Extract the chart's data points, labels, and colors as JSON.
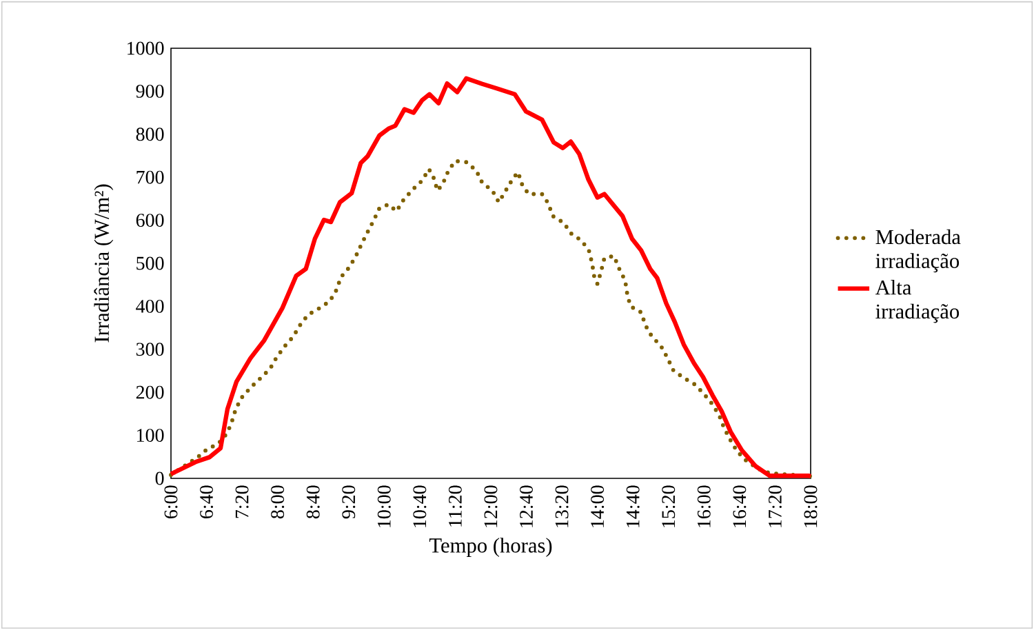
{
  "chart_data": {
    "type": "line",
    "xlabel": "Tempo (horas)",
    "ylabel": "Irradiância (W/m²)",
    "xlim": [
      6,
      18
    ],
    "ylim": [
      0,
      1000
    ],
    "xticks": [
      {
        "value": 6,
        "label": "6:00"
      },
      {
        "value": 6.6667,
        "label": "6:40"
      },
      {
        "value": 7.3333,
        "label": "7:20"
      },
      {
        "value": 8,
        "label": "8:00"
      },
      {
        "value": 8.6667,
        "label": "8:40"
      },
      {
        "value": 9.3333,
        "label": "9:20"
      },
      {
        "value": 10,
        "label": "10:00"
      },
      {
        "value": 10.6667,
        "label": "10:40"
      },
      {
        "value": 11.3333,
        "label": "11:20"
      },
      {
        "value": 12,
        "label": "12:00"
      },
      {
        "value": 12.6667,
        "label": "12:40"
      },
      {
        "value": 13.3333,
        "label": "13:20"
      },
      {
        "value": 14,
        "label": "14:00"
      },
      {
        "value": 14.6667,
        "label": "14:40"
      },
      {
        "value": 15.3333,
        "label": "15:20"
      },
      {
        "value": 16,
        "label": "16:00"
      },
      {
        "value": 16.6667,
        "label": "16:40"
      },
      {
        "value": 17.3333,
        "label": "17:20"
      },
      {
        "value": 18,
        "label": "18:00"
      }
    ],
    "yticks": [
      0,
      100,
      200,
      300,
      400,
      500,
      600,
      700,
      800,
      900,
      1000
    ],
    "legend": "right",
    "marker": "none",
    "series": [
      {
        "name": "Moderada irradiação",
        "color": "#7f6000",
        "line_style": "dotted",
        "x": [
          6.0,
          6.5,
          6.67,
          6.89,
          7.06,
          7.15,
          7.22,
          7.34,
          7.51,
          7.69,
          7.86,
          7.98,
          8.14,
          8.29,
          8.42,
          8.57,
          8.79,
          8.98,
          9.1,
          9.19,
          9.34,
          9.47,
          9.58,
          9.69,
          9.8,
          9.91,
          10.08,
          10.23,
          10.36,
          10.53,
          10.71,
          10.84,
          10.93,
          11.0,
          11.1,
          11.2,
          11.33,
          11.55,
          11.73,
          11.84,
          12.03,
          12.15,
          12.28,
          12.41,
          12.51,
          12.59,
          12.71,
          12.96,
          13.08,
          13.16,
          13.37,
          13.5,
          13.7,
          13.84,
          13.9,
          13.94,
          14.0,
          14.07,
          14.13,
          14.31,
          14.41,
          14.52,
          14.56,
          14.62,
          14.82,
          14.9,
          15.02,
          15.19,
          15.31,
          15.42,
          15.61,
          15.81,
          15.98,
          16.16,
          16.29,
          16.37,
          16.48,
          16.61,
          16.76,
          17.02,
          17.23,
          18.0
        ],
        "values": [
          8,
          49,
          67,
          81,
          106,
          135,
          163,
          190,
          213,
          234,
          255,
          281,
          308,
          329,
          356,
          380,
          396,
          412,
          437,
          468,
          490,
          517,
          546,
          573,
          599,
          628,
          637,
          621,
          647,
          671,
          692,
          719,
          698,
          669,
          685,
          714,
          738,
          735,
          715,
          687,
          669,
          642,
          669,
          696,
          712,
          682,
          661,
          661,
          639,
          610,
          594,
          570,
          553,
          530,
          500,
          469,
          452,
          482,
          512,
          517,
          487,
          460,
          428,
          400,
          386,
          356,
          330,
          308,
          281,
          252,
          234,
          220,
          199,
          172,
          145,
          119,
          92,
          65,
          44,
          22,
          12,
          5
        ]
      },
      {
        "name": "Alta irradiação",
        "color": "#ff0000",
        "line_style": "solid",
        "x": [
          6.0,
          6.46,
          6.72,
          6.93,
          7.06,
          7.23,
          7.49,
          7.75,
          8.09,
          8.35,
          8.53,
          8.7,
          8.87,
          9.0,
          9.17,
          9.39,
          9.56,
          9.69,
          9.91,
          10.08,
          10.21,
          10.38,
          10.55,
          10.71,
          10.85,
          11.02,
          11.18,
          11.37,
          11.54,
          11.84,
          12.1,
          12.45,
          12.66,
          12.96,
          13.18,
          13.35,
          13.5,
          13.66,
          13.83,
          14.0,
          14.13,
          14.47,
          14.65,
          14.82,
          14.99,
          15.12,
          15.29,
          15.45,
          15.62,
          15.81,
          15.98,
          16.16,
          16.33,
          16.5,
          16.71,
          16.97,
          17.23,
          17.97,
          18.0
        ],
        "values": [
          10,
          38,
          49,
          70,
          161,
          225,
          279,
          321,
          396,
          471,
          487,
          557,
          601,
          596,
          642,
          663,
          733,
          749,
          797,
          813,
          820,
          858,
          850,
          879,
          893,
          872,
          918,
          898,
          930,
          917,
          907,
          893,
          853,
          834,
          781,
          768,
          783,
          754,
          695,
          653,
          661,
          610,
          557,
          530,
          487,
          466,
          407,
          364,
          311,
          268,
          236,
          193,
          156,
          108,
          65,
          28,
          6,
          6,
          5
        ]
      }
    ]
  }
}
